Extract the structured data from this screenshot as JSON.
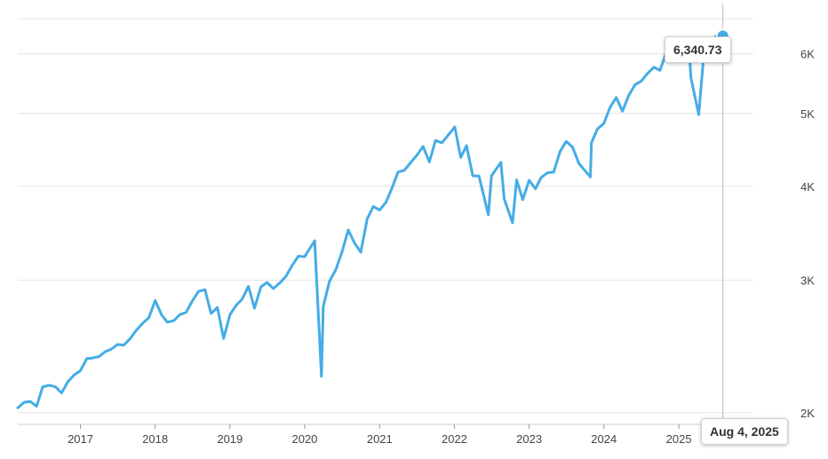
{
  "chart_data": {
    "type": "line",
    "title": "",
    "xlabel": "",
    "ylabel": "",
    "y_scale": "log",
    "grid": "horizontal",
    "y_axis_position": "right",
    "line_color": "#45ace6",
    "xlim": [
      "2016-03-01",
      "2025-12-31"
    ],
    "ylim": [
      1930,
      7000
    ],
    "y_ticks": [
      {
        "value": 2000,
        "label": "2K"
      },
      {
        "value": 3000,
        "label": "3K"
      },
      {
        "value": 4000,
        "label": "4K"
      },
      {
        "value": 5000,
        "label": "5K"
      },
      {
        "value": 6000,
        "label": "6K"
      }
    ],
    "x_ticks": [
      {
        "value": "2017-01-01",
        "label": "2017"
      },
      {
        "value": "2018-01-01",
        "label": "2018"
      },
      {
        "value": "2019-01-01",
        "label": "2019"
      },
      {
        "value": "2020-01-01",
        "label": "2020"
      },
      {
        "value": "2021-01-01",
        "label": "2021"
      },
      {
        "value": "2022-01-01",
        "label": "2022"
      },
      {
        "value": "2023-01-01",
        "label": "2023"
      },
      {
        "value": "2024-01-01",
        "label": "2024"
      },
      {
        "value": "2025-01-01",
        "label": "2025"
      }
    ],
    "series": [
      {
        "points": [
          [
            "2016-03-01",
            2030
          ],
          [
            "2016-04-01",
            2065
          ],
          [
            "2016-05-01",
            2070
          ],
          [
            "2016-06-01",
            2040
          ],
          [
            "2016-07-01",
            2165
          ],
          [
            "2016-08-01",
            2175
          ],
          [
            "2016-09-01",
            2165
          ],
          [
            "2016-10-01",
            2125
          ],
          [
            "2016-11-01",
            2200
          ],
          [
            "2016-12-01",
            2245
          ],
          [
            "2017-01-01",
            2275
          ],
          [
            "2017-02-01",
            2360
          ],
          [
            "2017-03-01",
            2365
          ],
          [
            "2017-04-01",
            2375
          ],
          [
            "2017-05-01",
            2410
          ],
          [
            "2017-06-01",
            2430
          ],
          [
            "2017-07-01",
            2465
          ],
          [
            "2017-08-01",
            2460
          ],
          [
            "2017-09-01",
            2510
          ],
          [
            "2017-10-01",
            2575
          ],
          [
            "2017-11-01",
            2630
          ],
          [
            "2017-12-01",
            2675
          ],
          [
            "2018-01-01",
            2820
          ],
          [
            "2018-02-01",
            2700
          ],
          [
            "2018-03-01",
            2640
          ],
          [
            "2018-04-01",
            2650
          ],
          [
            "2018-05-01",
            2700
          ],
          [
            "2018-06-01",
            2720
          ],
          [
            "2018-07-01",
            2815
          ],
          [
            "2018-08-01",
            2900
          ],
          [
            "2018-09-01",
            2915
          ],
          [
            "2018-10-01",
            2710
          ],
          [
            "2018-11-01",
            2760
          ],
          [
            "2018-12-01",
            2510
          ],
          [
            "2019-01-01",
            2700
          ],
          [
            "2019-02-01",
            2780
          ],
          [
            "2019-03-01",
            2830
          ],
          [
            "2019-04-01",
            2945
          ],
          [
            "2019-05-01",
            2755
          ],
          [
            "2019-06-01",
            2940
          ],
          [
            "2019-07-01",
            2980
          ],
          [
            "2019-08-01",
            2925
          ],
          [
            "2019-09-01",
            2975
          ],
          [
            "2019-10-01",
            3035
          ],
          [
            "2019-11-01",
            3140
          ],
          [
            "2019-12-01",
            3230
          ],
          [
            "2020-01-01",
            3225
          ],
          [
            "2020-02-19",
            3386
          ],
          [
            "2020-03-23",
            2237
          ],
          [
            "2020-04-01",
            2770
          ],
          [
            "2020-05-01",
            2990
          ],
          [
            "2020-06-01",
            3100
          ],
          [
            "2020-07-01",
            3270
          ],
          [
            "2020-08-01",
            3500
          ],
          [
            "2020-09-01",
            3360
          ],
          [
            "2020-10-01",
            3270
          ],
          [
            "2020-11-01",
            3620
          ],
          [
            "2020-12-01",
            3760
          ],
          [
            "2021-01-01",
            3720
          ],
          [
            "2021-02-01",
            3810
          ],
          [
            "2021-03-01",
            3970
          ],
          [
            "2021-04-01",
            4180
          ],
          [
            "2021-05-01",
            4200
          ],
          [
            "2021-06-01",
            4300
          ],
          [
            "2021-07-01",
            4395
          ],
          [
            "2021-08-01",
            4520
          ],
          [
            "2021-09-01",
            4310
          ],
          [
            "2021-10-01",
            4605
          ],
          [
            "2021-11-01",
            4570
          ],
          [
            "2022-01-03",
            4797
          ],
          [
            "2022-02-01",
            4370
          ],
          [
            "2022-03-01",
            4530
          ],
          [
            "2022-04-01",
            4130
          ],
          [
            "2022-05-01",
            4130
          ],
          [
            "2022-06-16",
            3666
          ],
          [
            "2022-07-01",
            4130
          ],
          [
            "2022-08-16",
            4305
          ],
          [
            "2022-09-01",
            3850
          ],
          [
            "2022-10-12",
            3577
          ],
          [
            "2022-11-01",
            4080
          ],
          [
            "2022-12-01",
            3840
          ],
          [
            "2023-01-01",
            4075
          ],
          [
            "2023-02-01",
            3970
          ],
          [
            "2023-03-01",
            4110
          ],
          [
            "2023-04-01",
            4170
          ],
          [
            "2023-05-01",
            4180
          ],
          [
            "2023-06-01",
            4450
          ],
          [
            "2023-07-01",
            4590
          ],
          [
            "2023-08-01",
            4510
          ],
          [
            "2023-09-01",
            4290
          ],
          [
            "2023-10-27",
            4117
          ],
          [
            "2023-11-01",
            4570
          ],
          [
            "2023-12-01",
            4770
          ],
          [
            "2024-01-01",
            4850
          ],
          [
            "2024-02-01",
            5100
          ],
          [
            "2024-03-01",
            5250
          ],
          [
            "2024-04-01",
            5035
          ],
          [
            "2024-05-01",
            5280
          ],
          [
            "2024-06-01",
            5460
          ],
          [
            "2024-07-01",
            5520
          ],
          [
            "2024-08-01",
            5650
          ],
          [
            "2024-09-01",
            5760
          ],
          [
            "2024-10-01",
            5705
          ],
          [
            "2024-11-01",
            6030
          ],
          [
            "2024-12-01",
            5880
          ],
          [
            "2025-01-01",
            6040
          ],
          [
            "2025-02-19",
            6144
          ],
          [
            "2025-03-01",
            5580
          ],
          [
            "2025-04-08",
            4982
          ],
          [
            "2025-05-01",
            5910
          ],
          [
            "2025-06-01",
            6205
          ],
          [
            "2025-07-01",
            6339
          ],
          [
            "2025-08-04",
            6340.73
          ]
        ]
      }
    ],
    "tooltip": {
      "value": "6,340.73",
      "date": "Aug 4, 2025"
    }
  }
}
